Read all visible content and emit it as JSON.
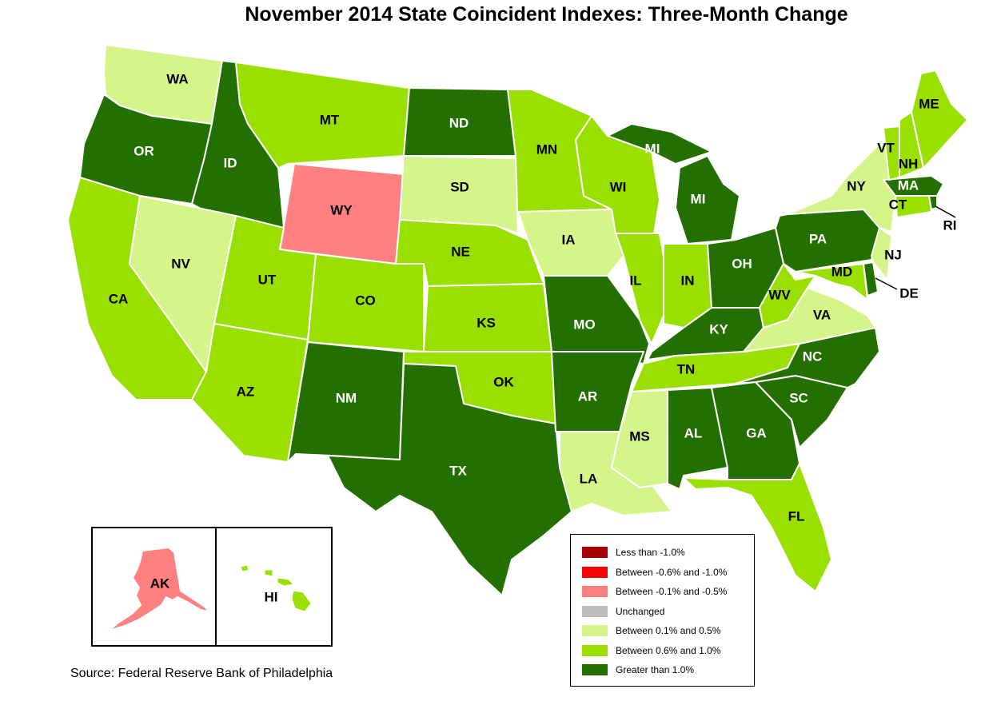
{
  "title": "November 2014 State Coincident Indexes: Three-Month Change",
  "source": "Source: Federal Reserve Bank of Philadelphia",
  "colors": {
    "less_than_neg1": "#a50000",
    "neg06_neg10": "#ff0000",
    "neg01_neg05": "#ff8080",
    "unchanged": "#bdbdbd",
    "pos01_05": "#d5f58a",
    "pos06_10": "#99e000",
    "gt1": "#236f00",
    "border": "#ffffff"
  },
  "legend": [
    {
      "label": "Less than -1.0%",
      "color": "#a50000"
    },
    {
      "label": "Between -0.6% and -1.0%",
      "color": "#ff0000"
    },
    {
      "label": "Between -0.1% and -0.5%",
      "color": "#ff8080"
    },
    {
      "label": "Unchanged",
      "color": "#bdbdbd"
    },
    {
      "label": "Between 0.1% and 0.5%",
      "color": "#d5f58a"
    },
    {
      "label": "Between 0.6% and 1.0%",
      "color": "#99e000"
    },
    {
      "label": "Greater than 1.0%",
      "color": "#236f00"
    }
  ],
  "states": {
    "WA": {
      "label": "WA",
      "category": "Between 0.1% and 0.5%"
    },
    "OR": {
      "label": "OR",
      "category": "Greater than 1.0%"
    },
    "CA": {
      "label": "CA",
      "category": "Between 0.6% and 1.0%"
    },
    "ID": {
      "label": "ID",
      "category": "Greater than 1.0%"
    },
    "NV": {
      "label": "NV",
      "category": "Between 0.1% and 0.5%"
    },
    "MT": {
      "label": "MT",
      "category": "Between 0.6% and 1.0%"
    },
    "WY": {
      "label": "WY",
      "category": "Between -0.1% and -0.5%"
    },
    "UT": {
      "label": "UT",
      "category": "Between 0.6% and 1.0%"
    },
    "AZ": {
      "label": "AZ",
      "category": "Between 0.6% and 1.0%"
    },
    "CO": {
      "label": "CO",
      "category": "Between 0.6% and 1.0%"
    },
    "NM": {
      "label": "NM",
      "category": "Greater than 1.0%"
    },
    "ND": {
      "label": "ND",
      "category": "Greater than 1.0%"
    },
    "SD": {
      "label": "SD",
      "category": "Between 0.1% and 0.5%"
    },
    "NE": {
      "label": "NE",
      "category": "Between 0.6% and 1.0%"
    },
    "KS": {
      "label": "KS",
      "category": "Between 0.6% and 1.0%"
    },
    "OK": {
      "label": "OK",
      "category": "Between 0.6% and 1.0%"
    },
    "TX": {
      "label": "TX",
      "category": "Greater than 1.0%"
    },
    "MN": {
      "label": "MN",
      "category": "Between 0.6% and 1.0%"
    },
    "IA": {
      "label": "IA",
      "category": "Between 0.1% and 0.5%"
    },
    "MO": {
      "label": "MO",
      "category": "Greater than 1.0%"
    },
    "AR": {
      "label": "AR",
      "category": "Greater than 1.0%"
    },
    "LA": {
      "label": "LA",
      "category": "Between 0.1% and 0.5%"
    },
    "WI": {
      "label": "WI",
      "category": "Between 0.6% and 1.0%"
    },
    "IL": {
      "label": "IL",
      "category": "Between 0.6% and 1.0%"
    },
    "MI": {
      "label": "MI",
      "category": "Greater than 1.0%"
    },
    "IN": {
      "label": "IN",
      "category": "Between 0.6% and 1.0%"
    },
    "OH": {
      "label": "OH",
      "category": "Greater than 1.0%"
    },
    "KY": {
      "label": "KY",
      "category": "Greater than 1.0%"
    },
    "TN": {
      "label": "TN",
      "category": "Between 0.6% and 1.0%"
    },
    "MS": {
      "label": "MS",
      "category": "Between 0.1% and 0.5%"
    },
    "AL": {
      "label": "AL",
      "category": "Greater than 1.0%"
    },
    "GA": {
      "label": "GA",
      "category": "Greater than 1.0%"
    },
    "FL": {
      "label": "FL",
      "category": "Between 0.6% and 1.0%"
    },
    "SC": {
      "label": "SC",
      "category": "Greater than 1.0%"
    },
    "NC": {
      "label": "NC",
      "category": "Greater than 1.0%"
    },
    "VA": {
      "label": "VA",
      "category": "Between 0.1% and 0.5%"
    },
    "WV": {
      "label": "WV",
      "category": "Between 0.6% and 1.0%"
    },
    "MD": {
      "label": "MD",
      "category": "Between 0.6% and 1.0%"
    },
    "DE": {
      "label": "DE",
      "category": "Greater than 1.0%"
    },
    "PA": {
      "label": "PA",
      "category": "Greater than 1.0%"
    },
    "NJ": {
      "label": "NJ",
      "category": "Between 0.1% and 0.5%"
    },
    "NY": {
      "label": "NY",
      "category": "Between 0.1% and 0.5%"
    },
    "CT": {
      "label": "CT",
      "category": "Between 0.6% and 1.0%"
    },
    "RI": {
      "label": "RI",
      "category": "Greater than 1.0%"
    },
    "MA": {
      "label": "MA",
      "category": "Greater than 1.0%"
    },
    "VT": {
      "label": "VT",
      "category": "Between 0.6% and 1.0%"
    },
    "NH": {
      "label": "NH",
      "category": "Between 0.6% and 1.0%"
    },
    "ME": {
      "label": "ME",
      "category": "Between 0.6% and 1.0%"
    },
    "AK": {
      "label": "AK",
      "category": "Between -0.1% and -0.5%"
    },
    "HI": {
      "label": "HI",
      "category": "Between 0.6% and 1.0%"
    }
  }
}
